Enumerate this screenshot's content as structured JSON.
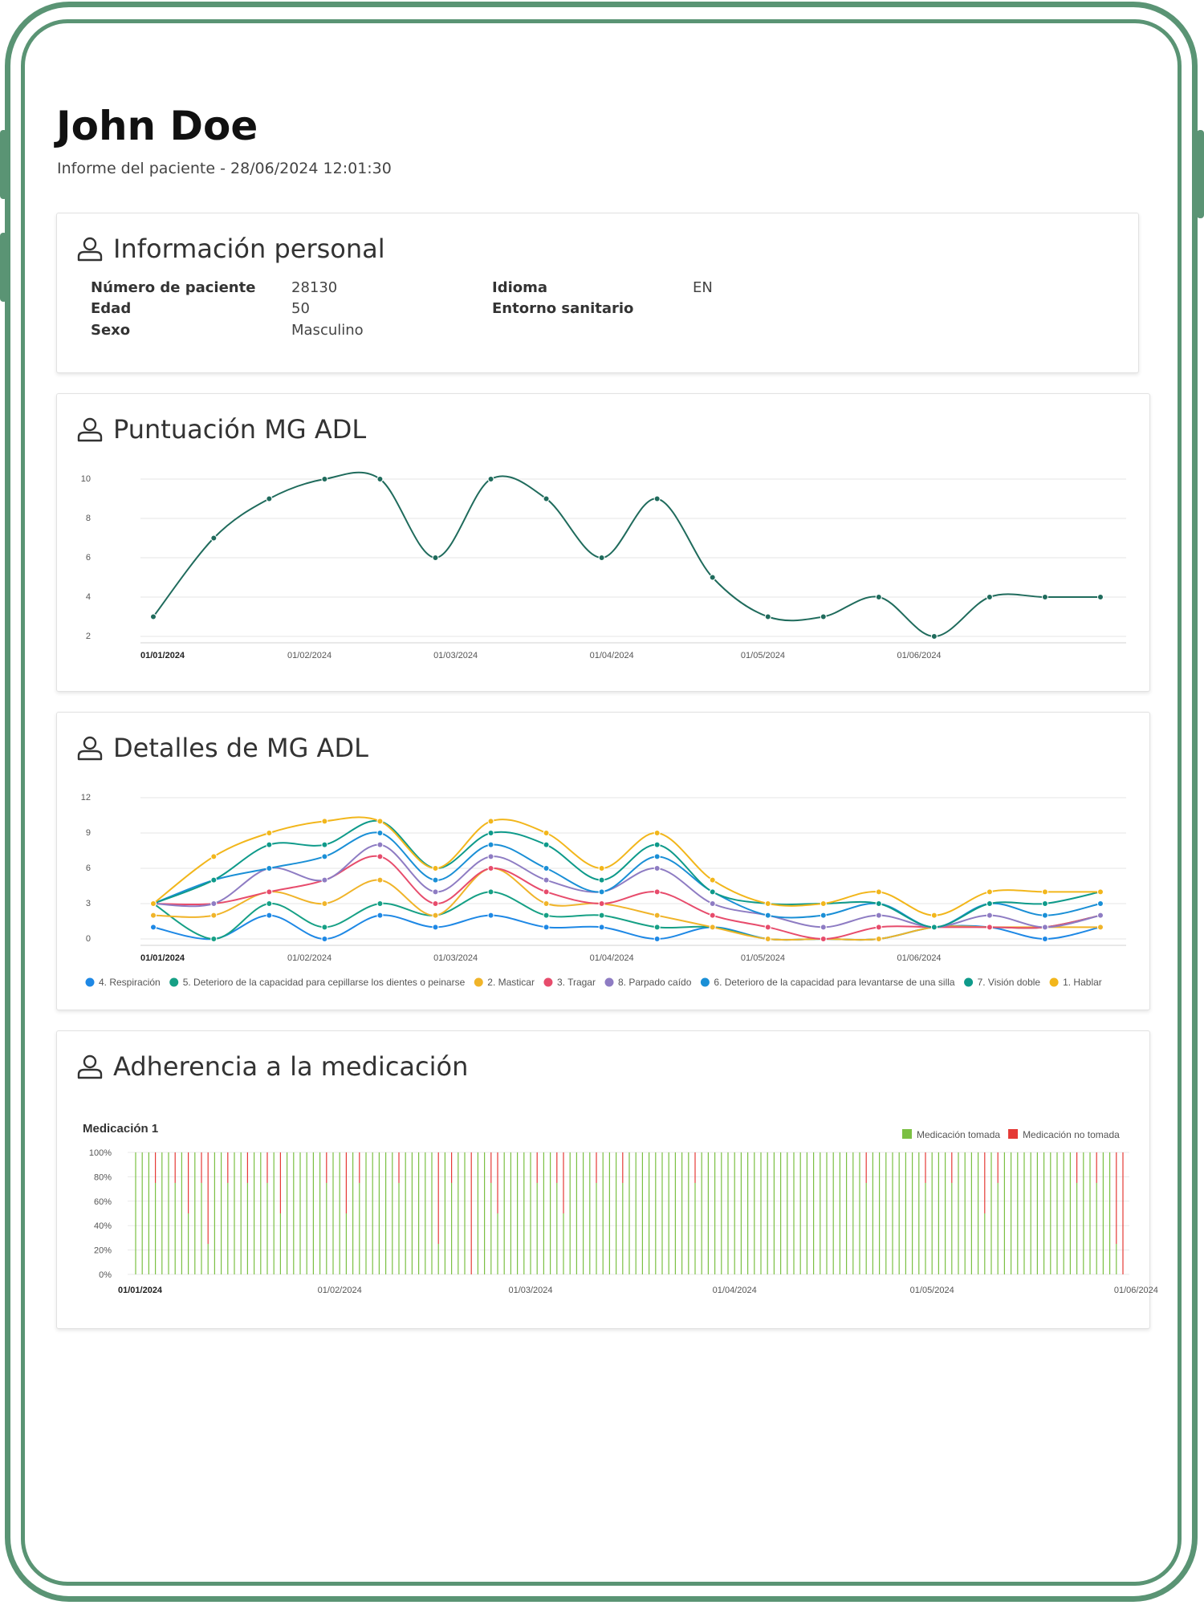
{
  "header": {
    "patient_name": "John Doe",
    "subtitle": "Informe del paciente - 28/06/2024 12:01:30"
  },
  "personal_info": {
    "title": "Información personal",
    "fields_left": [
      {
        "label": "Número de paciente",
        "value": "28130"
      },
      {
        "label": "Edad",
        "value": "50"
      },
      {
        "label": "Sexo",
        "value": "Masculino"
      }
    ],
    "fields_right": [
      {
        "label": "Idioma",
        "value": "EN"
      },
      {
        "label": "Entorno sanitario",
        "value": ""
      }
    ]
  },
  "score_card": {
    "title": "Puntuación MG ADL"
  },
  "details_card": {
    "title": "Detalles de MG ADL"
  },
  "adherence_card": {
    "title": "Adherencia a la medicación"
  },
  "colors": {
    "frame": "#5a9474",
    "score_line": "#1f6b5c",
    "taken": "#7bc043",
    "not_taken": "#e53935"
  },
  "chart_data": [
    {
      "type": "line",
      "title": "",
      "x": [
        "01/01/2024",
        "13/01/2024",
        "24/01/2024",
        "04/02/2024",
        "15/02/2024",
        "26/02/2024",
        "08/03/2024",
        "19/03/2024",
        "30/03/2024",
        "10/04/2024",
        "21/04/2024",
        "02/05/2024",
        "13/05/2024",
        "24/05/2024",
        "04/06/2024",
        "15/06/2024",
        "26/06/2024",
        "07/07/2024"
      ],
      "x_tick_labels": [
        "01/01/2024",
        "01/02/2024",
        "01/03/2024",
        "01/04/2024",
        "01/05/2024",
        "01/06/2024"
      ],
      "y_tick_labels": [
        "2",
        "4",
        "6",
        "8",
        "10"
      ],
      "ylim": [
        2,
        10
      ],
      "series": [
        {
          "values": [
            3,
            7,
            9,
            10,
            10,
            6,
            10,
            9,
            6,
            9,
            5,
            3,
            3,
            4,
            2,
            4,
            4,
            4
          ]
        }
      ]
    },
    {
      "type": "line",
      "title": "",
      "x": [
        "01/01/2024",
        "13/01/2024",
        "24/01/2024",
        "04/02/2024",
        "15/02/2024",
        "26/02/2024",
        "08/03/2024",
        "19/03/2024",
        "30/03/2024",
        "10/04/2024",
        "21/04/2024",
        "02/05/2024",
        "13/05/2024",
        "24/05/2024",
        "04/06/2024",
        "15/06/2024",
        "26/06/2024",
        "07/07/2024"
      ],
      "x_tick_labels": [
        "01/01/2024",
        "01/02/2024",
        "01/03/2024",
        "01/04/2024",
        "01/05/2024",
        "01/06/2024"
      ],
      "y_tick_labels": [
        "0",
        "3",
        "6",
        "9",
        "12"
      ],
      "ylim": [
        0,
        12
      ],
      "legend_position": "bottom",
      "series": [
        {
          "name": "4. Respiración",
          "color": "#1e88e5",
          "values": [
            1,
            0,
            2,
            0,
            2,
            1,
            2,
            1,
            1,
            0,
            1,
            0,
            0,
            0,
            1,
            1,
            0,
            1
          ]
        },
        {
          "name": "5. Deterioro de la capacidad para cepillarse los dientes o peinarse",
          "color": "#16a085",
          "values": [
            3,
            0,
            3,
            1,
            3,
            2,
            4,
            2,
            2,
            1,
            1,
            0,
            0,
            0,
            1,
            1,
            1,
            2
          ]
        },
        {
          "name": "2. Masticar",
          "color": "#f0b429",
          "values": [
            2,
            2,
            4,
            3,
            5,
            2,
            6,
            3,
            3,
            2,
            1,
            0,
            0,
            0,
            1,
            1,
            1,
            1
          ]
        },
        {
          "name": "3. Tragar",
          "color": "#e74c6c",
          "values": [
            3,
            3,
            4,
            5,
            7,
            3,
            6,
            4,
            3,
            4,
            2,
            1,
            0,
            1,
            1,
            1,
            1,
            2
          ]
        },
        {
          "name": "8. Parpado caído",
          "color": "#8e7cc3",
          "values": [
            3,
            3,
            6,
            5,
            8,
            4,
            7,
            5,
            4,
            6,
            3,
            2,
            1,
            2,
            1,
            2,
            1,
            2
          ]
        },
        {
          "name": "6. Deterioro de la capacidad para levantarse de una silla",
          "color": "#1a8fd6",
          "values": [
            3,
            5,
            6,
            7,
            9,
            5,
            8,
            6,
            4,
            7,
            4,
            2,
            2,
            3,
            1,
            3,
            2,
            3
          ]
        },
        {
          "name": "7. Visión doble",
          "color": "#0e9a8a",
          "values": [
            3,
            5,
            8,
            8,
            10,
            6,
            9,
            8,
            5,
            8,
            4,
            3,
            3,
            3,
            1,
            3,
            3,
            4
          ]
        },
        {
          "name": "1. Hablar",
          "color": "#f2b61b",
          "values": [
            3,
            7,
            9,
            10,
            10,
            6,
            10,
            9,
            6,
            9,
            5,
            3,
            3,
            4,
            2,
            4,
            4,
            4
          ]
        }
      ]
    },
    {
      "type": "bar",
      "stacked": true,
      "title": "Medicación 1",
      "y_tick_labels": [
        "0%",
        "20%",
        "40%",
        "60%",
        "80%",
        "100%"
      ],
      "ylim": [
        0,
        100
      ],
      "x_tick_labels": [
        "01/01/2024",
        "01/02/2024",
        "01/03/2024",
        "01/04/2024",
        "01/05/2024",
        "01/06/2024"
      ],
      "legend_position": "top-right",
      "series": [
        {
          "name": "Medicación tomada",
          "color": "#7bc043"
        },
        {
          "name": "Medicación no tomada",
          "color": "#e53935"
        }
      ],
      "not_taken_percent": [
        0,
        0,
        0,
        25,
        0,
        0,
        25,
        0,
        50,
        0,
        25,
        75,
        0,
        0,
        25,
        0,
        0,
        25,
        0,
        0,
        25,
        0,
        50,
        0,
        0,
        0,
        0,
        0,
        0,
        25,
        0,
        0,
        50,
        0,
        25,
        0,
        0,
        0,
        0,
        0,
        25,
        0,
        0,
        0,
        0,
        0,
        75,
        0,
        25,
        0,
        0,
        100,
        0,
        0,
        25,
        50,
        0,
        0,
        0,
        0,
        0,
        25,
        0,
        0,
        25,
        50,
        0,
        0,
        0,
        0,
        25,
        0,
        0,
        0,
        25,
        0,
        0,
        0,
        0,
        0,
        0,
        0,
        0,
        0,
        0,
        25,
        0,
        0,
        0,
        0,
        0,
        0,
        0,
        0,
        0,
        0,
        0,
        0,
        0,
        0,
        0,
        0,
        0,
        0,
        0,
        0,
        0,
        0,
        0,
        0,
        0,
        25,
        0,
        0,
        0,
        0,
        0,
        0,
        0,
        0,
        25,
        0,
        0,
        0,
        25,
        0,
        0,
        0,
        0,
        50,
        0,
        25,
        0,
        0,
        0,
        0,
        0,
        0,
        0,
        0,
        0,
        0,
        0,
        25,
        0,
        0,
        25,
        0,
        0,
        75,
        100
      ]
    }
  ]
}
